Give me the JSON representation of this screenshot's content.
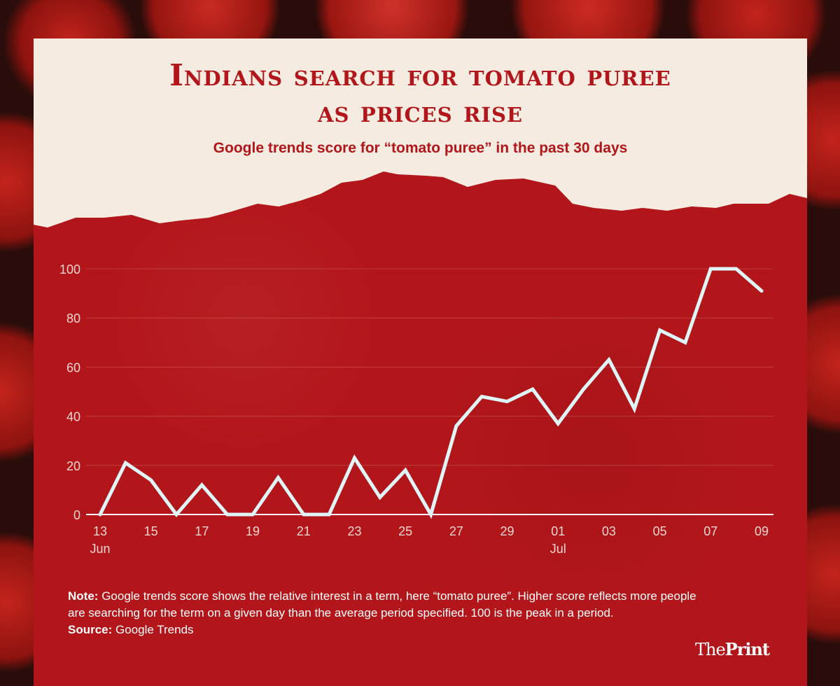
{
  "title_line1": "Indians search for tomato puree",
  "title_line2": "as prices rise",
  "subtitle": "Google trends score for “tomato puree” in the past 30 days",
  "note_label": "Note:",
  "note_text": "Google trends score shows the relative interest in a term, here “tomato puree”. Higher score reflects more people are searching for the term on a given day than the average period specified. 100 is the peak in a period.",
  "source_label": "Source:",
  "source_text": "Google Trends",
  "logo": {
    "part1": "The",
    "part2": "Print"
  },
  "colors": {
    "line": "#dff6f8",
    "background": "#b3161a",
    "header": "#f5ebe0",
    "title": "#b3161a"
  },
  "chart_data": {
    "type": "line",
    "x": [
      "13 Jun",
      "14",
      "15",
      "16",
      "17",
      "18",
      "19",
      "20",
      "21",
      "22",
      "23",
      "24",
      "25",
      "26",
      "27",
      "28",
      "29",
      "30",
      "01 Jul",
      "02",
      "03",
      "04",
      "05",
      "06",
      "07",
      "08",
      "09"
    ],
    "series": [
      {
        "values": [
          0,
          21,
          14,
          0,
          12,
          0,
          0,
          15,
          0,
          0,
          23,
          7,
          18,
          0,
          36,
          48,
          46,
          51,
          37,
          51,
          63,
          43,
          75,
          70,
          100,
          100,
          91
        ]
      }
    ],
    "x_tick_labels": [
      "13",
      "15",
      "17",
      "19",
      "21",
      "23",
      "25",
      "27",
      "29",
      "01",
      "03",
      "05",
      "07",
      "09"
    ],
    "x_month_labels": {
      "13": "Jun",
      "01": "Jul"
    },
    "y_ticks": [
      0,
      20,
      40,
      60,
      80,
      100
    ],
    "ylim": [
      0,
      100
    ],
    "grid": true
  }
}
